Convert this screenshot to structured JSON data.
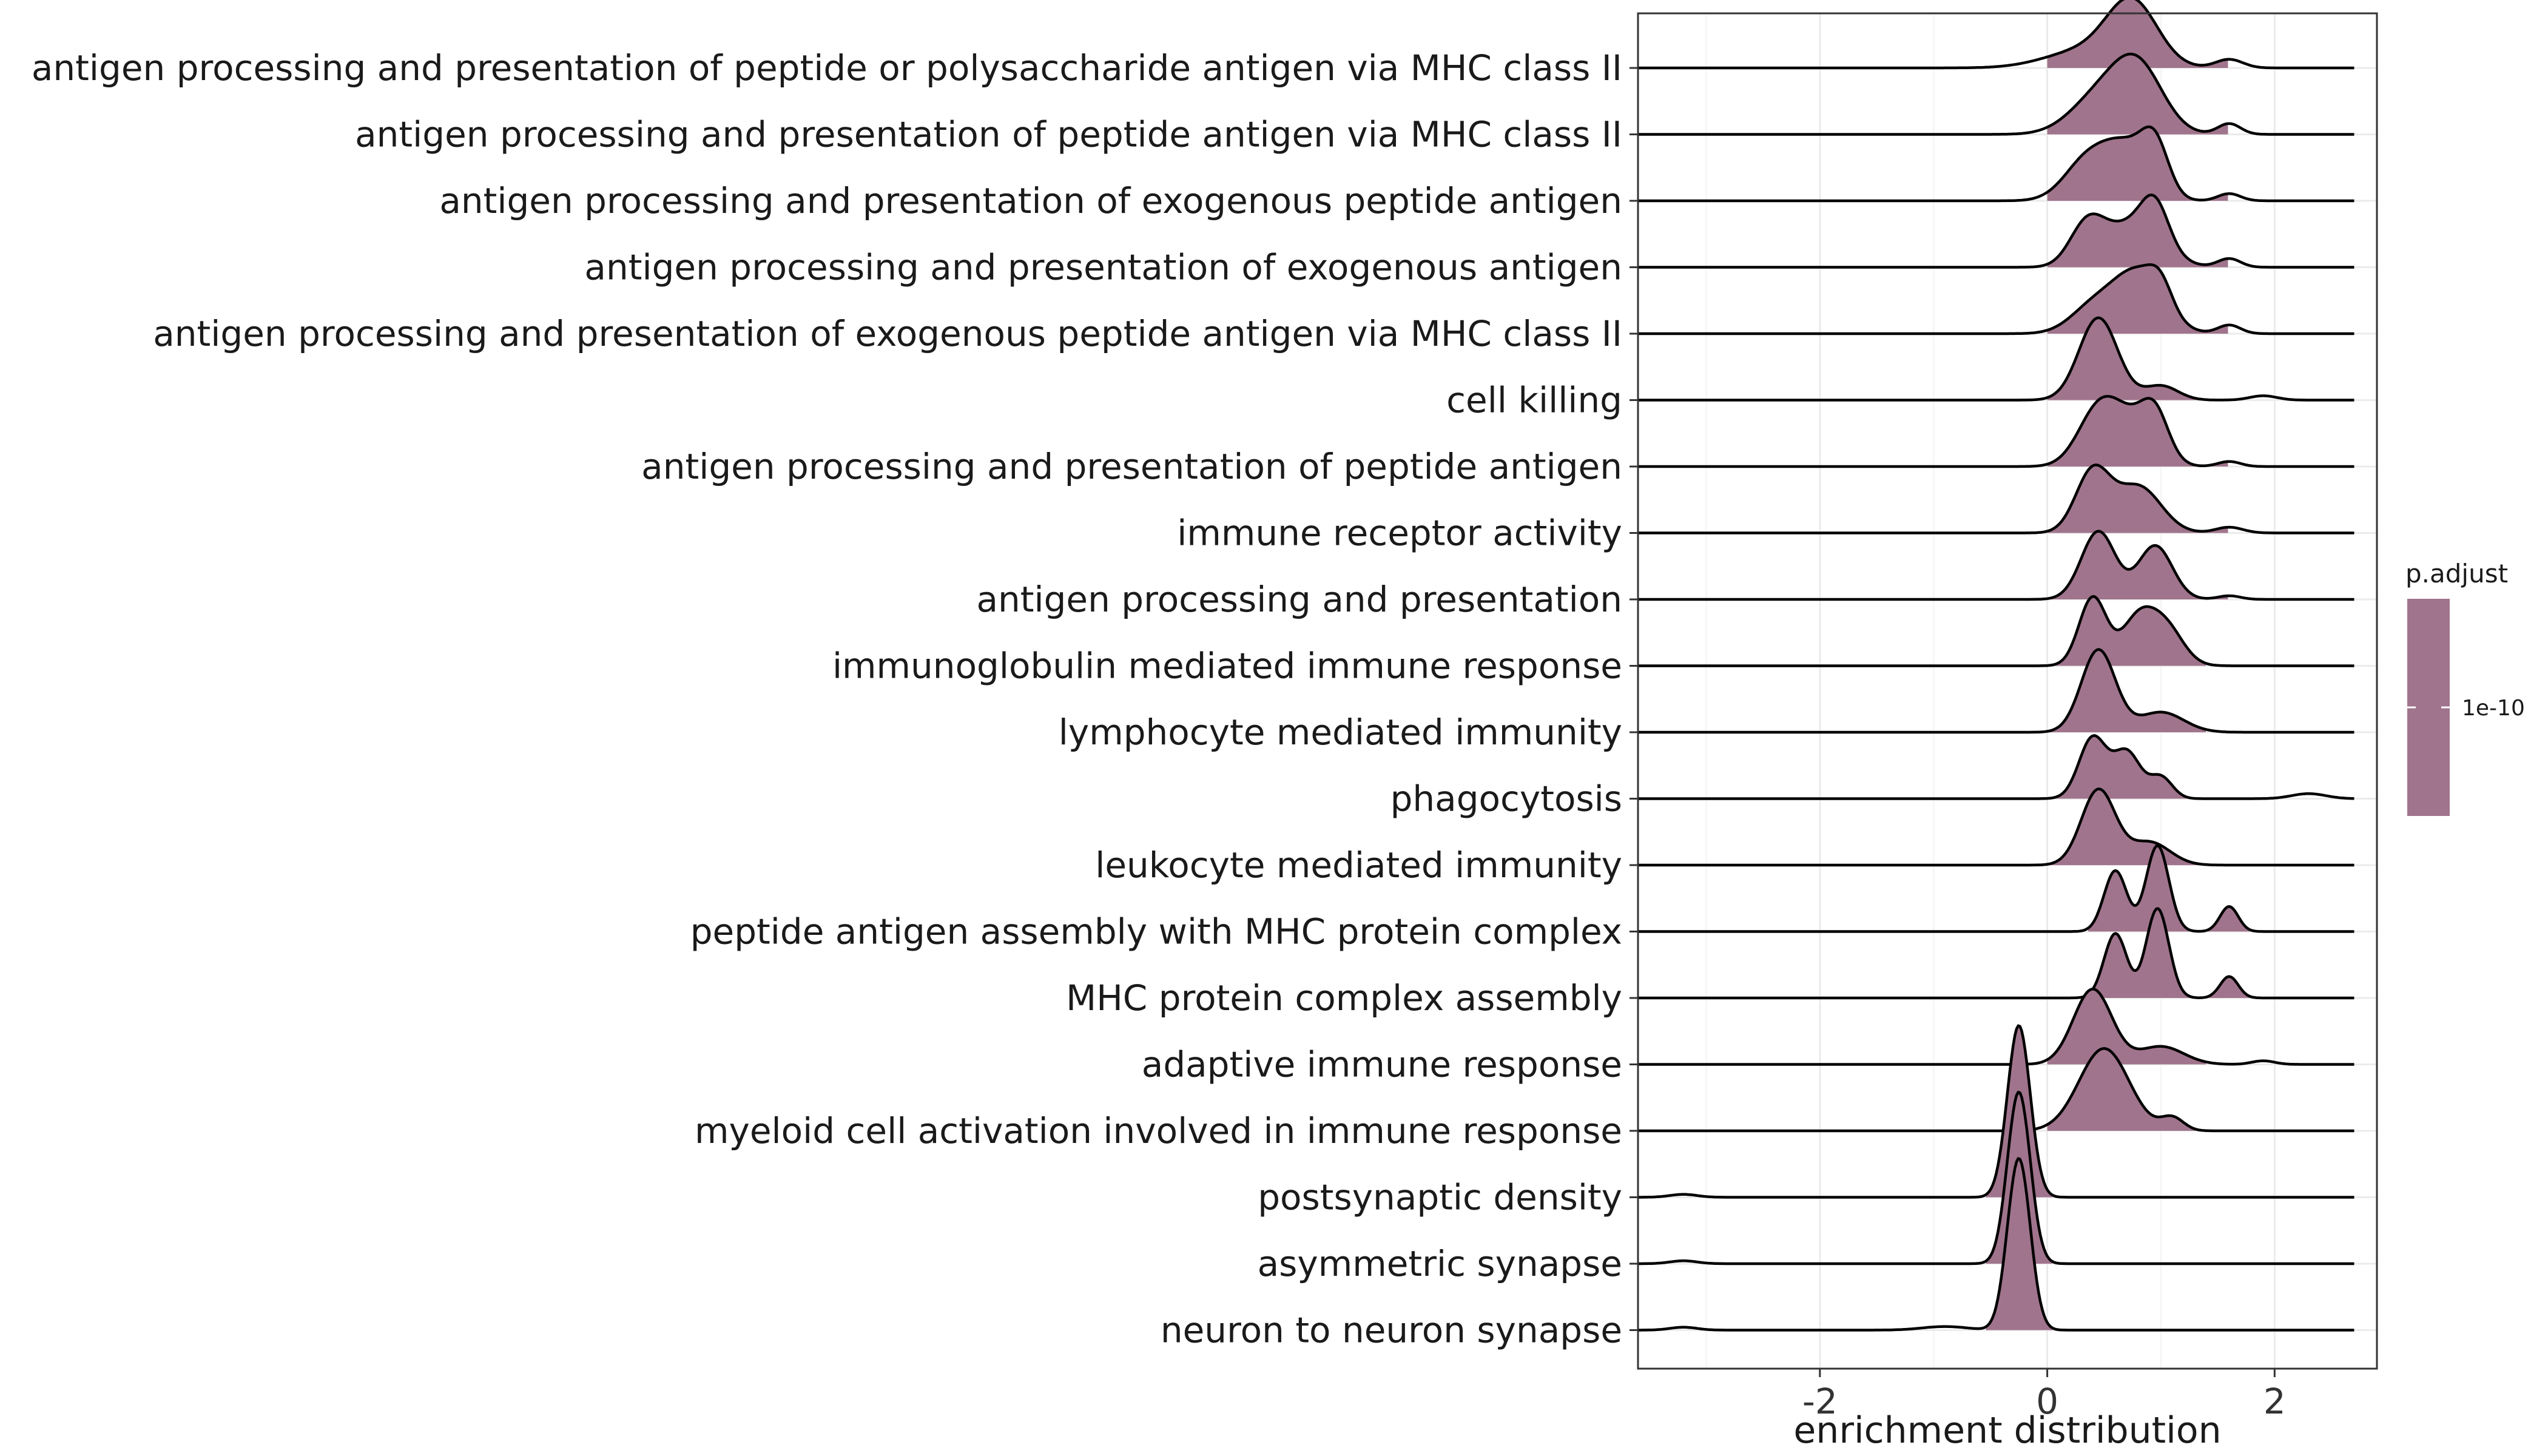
{
  "chart_data": {
    "type": "ridgeline",
    "xlabel": "enrichment distribution",
    "ylabel": "",
    "xlim": [
      -3.6,
      2.9
    ],
    "xticks": [
      -2,
      0,
      2
    ],
    "xtick_labels": [
      "-2",
      "0",
      "2"
    ],
    "grid": true,
    "legend": {
      "title": "p.adjust",
      "placement": "right",
      "ticks": [
        "1e-10"
      ],
      "color": "#a0748c"
    },
    "fill_color": "#a0748c",
    "line_color": "#000000",
    "categories": [
      "antigen processing and presentation of peptide or polysaccharide antigen via MHC class II",
      "antigen processing and presentation of peptide antigen via MHC class II",
      "antigen processing and presentation of exogenous peptide antigen",
      "antigen processing and presentation of exogenous antigen",
      "antigen processing and presentation of exogenous peptide antigen via MHC class II",
      "cell killing",
      "antigen processing and presentation of peptide antigen",
      "immune receptor activity",
      "antigen processing and presentation",
      "immunoglobulin mediated immune response",
      "lymphocyte mediated immunity",
      "phagocytosis",
      "leukocyte mediated immunity",
      "peptide antigen assembly with MHC protein complex",
      "MHC protein complex assembly",
      "adaptive immune response",
      "myeloid cell activation involved in immune response",
      "postsynaptic density",
      "asymmetric synapse",
      "neuron to neuron synapse"
    ],
    "series": [
      {
        "x_range": [
          -3.6,
          2.7
        ],
        "fill_range": [
          0.0,
          1.6
        ],
        "peaks": [
          [
            0.35,
            0.35,
            0.25
          ],
          [
            0.75,
            0.22,
            0.85
          ],
          [
            1.6,
            0.12,
            0.12
          ]
        ]
      },
      {
        "x_range": [
          -3.6,
          2.7
        ],
        "fill_range": [
          0.0,
          1.6
        ],
        "peaks": [
          [
            0.45,
            0.25,
            0.5
          ],
          [
            0.8,
            0.22,
            0.9
          ],
          [
            1.6,
            0.1,
            0.15
          ]
        ]
      },
      {
        "x_range": [
          -3.6,
          2.7
        ],
        "fill_range": [
          0.0,
          1.6
        ],
        "peaks": [
          [
            0.35,
            0.2,
            0.55
          ],
          [
            0.7,
            0.2,
            0.7
          ],
          [
            0.95,
            0.12,
            0.65
          ],
          [
            1.6,
            0.1,
            0.1
          ]
        ]
      },
      {
        "x_range": [
          -3.6,
          2.7
        ],
        "fill_range": [
          0.0,
          1.6
        ],
        "peaks": [
          [
            0.35,
            0.15,
            0.55
          ],
          [
            0.75,
            0.25,
            0.6
          ],
          [
            0.95,
            0.12,
            0.55
          ],
          [
            1.6,
            0.1,
            0.12
          ]
        ]
      },
      {
        "x_range": [
          -3.6,
          2.7
        ],
        "fill_range": [
          0.0,
          1.6
        ],
        "peaks": [
          [
            0.4,
            0.2,
            0.35
          ],
          [
            0.8,
            0.22,
            0.85
          ],
          [
            1.0,
            0.1,
            0.3
          ],
          [
            1.6,
            0.1,
            0.12
          ]
        ]
      },
      {
        "x_range": [
          -3.6,
          2.7
        ],
        "fill_range": [
          0.0,
          1.6
        ],
        "peaks": [
          [
            0.45,
            0.17,
            1.15
          ],
          [
            1.0,
            0.15,
            0.2
          ],
          [
            1.9,
            0.12,
            0.06
          ]
        ]
      },
      {
        "x_range": [
          -3.6,
          2.7
        ],
        "fill_range": [
          0.0,
          1.6
        ],
        "peaks": [
          [
            0.45,
            0.18,
            0.75
          ],
          [
            0.75,
            0.2,
            0.55
          ],
          [
            0.95,
            0.12,
            0.55
          ],
          [
            1.6,
            0.1,
            0.07
          ]
        ]
      },
      {
        "x_range": [
          -3.6,
          2.7
        ],
        "fill_range": [
          0.0,
          1.6
        ],
        "peaks": [
          [
            0.4,
            0.15,
            0.85
          ],
          [
            0.8,
            0.2,
            0.65
          ],
          [
            1.6,
            0.12,
            0.08
          ]
        ]
      },
      {
        "x_range": [
          -3.6,
          2.7
        ],
        "fill_range": [
          0.0,
          1.6
        ],
        "peaks": [
          [
            0.45,
            0.15,
            0.95
          ],
          [
            0.95,
            0.15,
            0.75
          ],
          [
            1.6,
            0.1,
            0.05
          ]
        ]
      },
      {
        "x_range": [
          -3.6,
          2.7
        ],
        "fill_range": [
          0.0,
          1.4
        ],
        "peaks": [
          [
            0.4,
            0.12,
            0.95
          ],
          [
            0.8,
            0.15,
            0.65
          ],
          [
            1.05,
            0.15,
            0.5
          ]
        ]
      },
      {
        "x_range": [
          -3.6,
          2.7
        ],
        "fill_range": [
          0.0,
          1.4
        ],
        "peaks": [
          [
            0.45,
            0.15,
            1.15
          ],
          [
            1.0,
            0.2,
            0.28
          ]
        ]
      },
      {
        "x_range": [
          -3.6,
          2.7
        ],
        "fill_range": [
          0.0,
          1.4
        ],
        "peaks": [
          [
            0.4,
            0.12,
            0.85
          ],
          [
            0.7,
            0.12,
            0.65
          ],
          [
            1.0,
            0.1,
            0.3
          ],
          [
            2.3,
            0.15,
            0.07
          ]
        ]
      },
      {
        "x_range": [
          -3.6,
          2.7
        ],
        "fill_range": [
          0.0,
          1.4
        ],
        "peaks": [
          [
            0.45,
            0.15,
            1.05
          ],
          [
            0.9,
            0.18,
            0.32
          ]
        ]
      },
      {
        "x_range": [
          -3.6,
          2.7
        ],
        "fill_range": [
          0.35,
          1.8
        ],
        "peaks": [
          [
            0.6,
            0.1,
            0.85
          ],
          [
            0.97,
            0.1,
            1.2
          ],
          [
            1.6,
            0.08,
            0.35
          ]
        ]
      },
      {
        "x_range": [
          -3.6,
          2.7
        ],
        "fill_range": [
          0.35,
          1.8
        ],
        "peaks": [
          [
            0.6,
            0.1,
            0.9
          ],
          [
            0.97,
            0.1,
            1.25
          ],
          [
            1.6,
            0.08,
            0.3
          ]
        ]
      },
      {
        "x_range": [
          -3.6,
          2.7
        ],
        "fill_range": [
          0.0,
          1.4
        ],
        "peaks": [
          [
            0.4,
            0.17,
            1.05
          ],
          [
            1.0,
            0.2,
            0.25
          ],
          [
            1.9,
            0.1,
            0.05
          ]
        ]
      },
      {
        "x_range": [
          -3.6,
          2.7
        ],
        "fill_range": [
          0.0,
          1.4
        ],
        "peaks": [
          [
            0.5,
            0.22,
            1.15
          ],
          [
            1.1,
            0.1,
            0.18
          ]
        ]
      },
      {
        "x_range": [
          -3.6,
          2.7
        ],
        "fill_range": [
          -0.55,
          0.05
        ],
        "peaks": [
          [
            -0.25,
            0.1,
            2.4
          ],
          [
            -3.2,
            0.12,
            0.04
          ]
        ]
      },
      {
        "x_range": [
          -3.6,
          2.7
        ],
        "fill_range": [
          -0.55,
          0.05
        ],
        "peaks": [
          [
            -0.25,
            0.1,
            2.4
          ],
          [
            -3.2,
            0.12,
            0.04
          ]
        ]
      },
      {
        "x_range": [
          -3.6,
          2.7
        ],
        "fill_range": [
          -0.55,
          0.05
        ],
        "peaks": [
          [
            -0.25,
            0.1,
            2.4
          ],
          [
            -3.2,
            0.12,
            0.04
          ],
          [
            -0.9,
            0.2,
            0.05
          ]
        ]
      }
    ]
  }
}
